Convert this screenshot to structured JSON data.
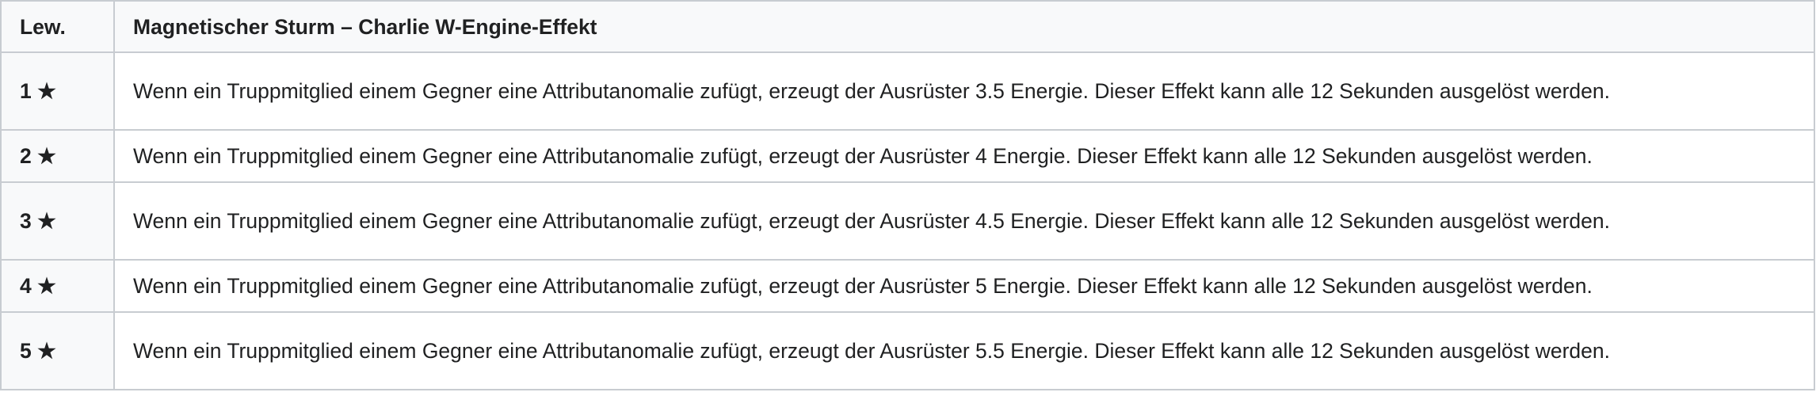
{
  "table": {
    "headers": [
      "Lew.",
      "Magnetischer Sturm – Charlie W-Engine-Effekt"
    ],
    "rows": [
      {
        "level": "1 ★",
        "effect": "Wenn ein Truppmitglied einem Gegner eine Attributanomalie zufügt, erzeugt der Ausrüster 3.5 Energie. Dieser Effekt kann alle 12 Sekunden ausgelöst werden."
      },
      {
        "level": "2 ★",
        "effect": "Wenn ein Truppmitglied einem Gegner eine Attributanomalie zufügt, erzeugt der Ausrüster 4 Energie. Dieser Effekt kann alle 12 Sekunden ausgelöst werden."
      },
      {
        "level": "3 ★",
        "effect": "Wenn ein Truppmitglied einem Gegner eine Attributanomalie zufügt, erzeugt der Ausrüster 4.5 Energie. Dieser Effekt kann alle 12 Sekunden ausgelöst werden."
      },
      {
        "level": "4 ★",
        "effect": "Wenn ein Truppmitglied einem Gegner eine Attributanomalie zufügt, erzeugt der Ausrüster 5 Energie. Dieser Effekt kann alle 12 Sekunden ausgelöst werden."
      },
      {
        "level": "5 ★",
        "effect": "Wenn ein Truppmitglied einem Gegner eine Attributanomalie zufügt, erzeugt der Ausrüster 5.5 Energie. Dieser Effekt kann alle 12 Sekunden ausgelöst werden."
      }
    ]
  }
}
